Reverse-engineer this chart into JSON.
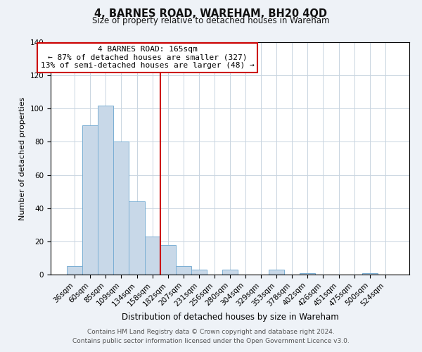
{
  "title": "4, BARNES ROAD, WAREHAM, BH20 4QD",
  "subtitle": "Size of property relative to detached houses in Wareham",
  "xlabel": "Distribution of detached houses by size in Wareham",
  "ylabel": "Number of detached properties",
  "bar_labels": [
    "36sqm",
    "60sqm",
    "85sqm",
    "109sqm",
    "134sqm",
    "158sqm",
    "182sqm",
    "207sqm",
    "231sqm",
    "256sqm",
    "280sqm",
    "304sqm",
    "329sqm",
    "353sqm",
    "378sqm",
    "402sqm",
    "426sqm",
    "451sqm",
    "475sqm",
    "500sqm",
    "524sqm"
  ],
  "bar_values": [
    5,
    90,
    102,
    80,
    44,
    23,
    18,
    5,
    3,
    0,
    3,
    0,
    0,
    3,
    0,
    1,
    0,
    0,
    0,
    1,
    0
  ],
  "bar_color": "#c8d8e8",
  "bar_edge_color": "#7bafd4",
  "vline_x": 5.5,
  "vline_color": "#cc0000",
  "annotation_title": "4 BARNES ROAD: 165sqm",
  "annotation_line1": "← 87% of detached houses are smaller (327)",
  "annotation_line2": "13% of semi-detached houses are larger (48) →",
  "annotation_box_color": "#cc0000",
  "ylim": [
    0,
    140
  ],
  "yticks": [
    0,
    20,
    40,
    60,
    80,
    100,
    120,
    140
  ],
  "footer1": "Contains HM Land Registry data © Crown copyright and database right 2024.",
  "footer2": "Contains public sector information licensed under the Open Government Licence v3.0.",
  "bg_color": "#eef2f7",
  "plot_bg_color": "#ffffff",
  "grid_color": "#c8d4e0"
}
